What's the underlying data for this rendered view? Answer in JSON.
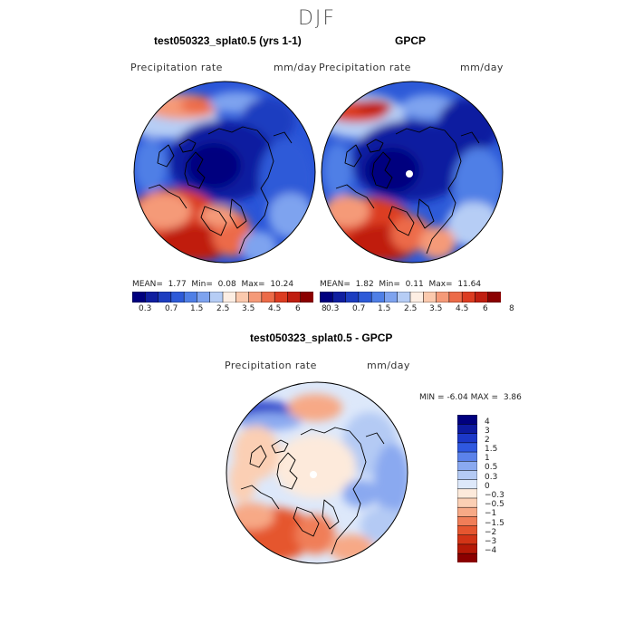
{
  "season": "DJF",
  "panels": {
    "model": {
      "title": "test050323_splat0.5 (yrs 1-1)",
      "field": "Precipitation rate",
      "units": "mm/day",
      "stats": {
        "mean_label": "MEAN=",
        "mean": "1.77",
        "min_label": "Min=",
        "min": "0.08",
        "max_label": "Max=",
        "max": "10.24"
      }
    },
    "obs": {
      "title": "GPCP",
      "field": "Precipitation rate",
      "units": "mm/day",
      "stats": {
        "mean_label": "MEAN=",
        "mean": "1.82",
        "min_label": "Min=",
        "min": "0.11",
        "max_label": "Max=",
        "max": "11.64"
      }
    },
    "diff": {
      "title": "test050323_splat0.5 - GPCP",
      "field": "Precipitation rate",
      "units": "mm/day",
      "stats": {
        "min_label": "MIN =",
        "min": "-6.04",
        "max_label": "MAX =",
        "max": "3.86"
      }
    }
  },
  "colorbar_abs": {
    "colors": [
      "#00007f",
      "#0f1ea0",
      "#1c3dc0",
      "#2d5ad8",
      "#4f7fe6",
      "#7ea3ef",
      "#b6cdf5",
      "#fdeee3",
      "#fbc9ad",
      "#f59a78",
      "#ec6b48",
      "#dc3c21",
      "#c01e10",
      "#8b0000"
    ],
    "tick_labels": [
      "0.3",
      "0.7",
      "1.5",
      "2.5",
      "3.5",
      "4.5",
      "6",
      "8"
    ]
  },
  "colorbar_diff": {
    "colors": [
      "#00007f",
      "#0d1aa0",
      "#1c38c8",
      "#2f58e0",
      "#5b82ea",
      "#8aa9f0",
      "#b4caf4",
      "#dde8fa",
      "#fdeadb",
      "#fbcfb4",
      "#f7a986",
      "#f07e58",
      "#e5562f",
      "#d23416",
      "#b51907",
      "#8b0000"
    ],
    "tick_labels": [
      "4",
      "3",
      "2",
      "1.5",
      "1",
      "0.5",
      "0.3",
      "0",
      "−0.3",
      "−0.5",
      "−1",
      "−1.5",
      "−2",
      "−3",
      "−4"
    ]
  }
}
